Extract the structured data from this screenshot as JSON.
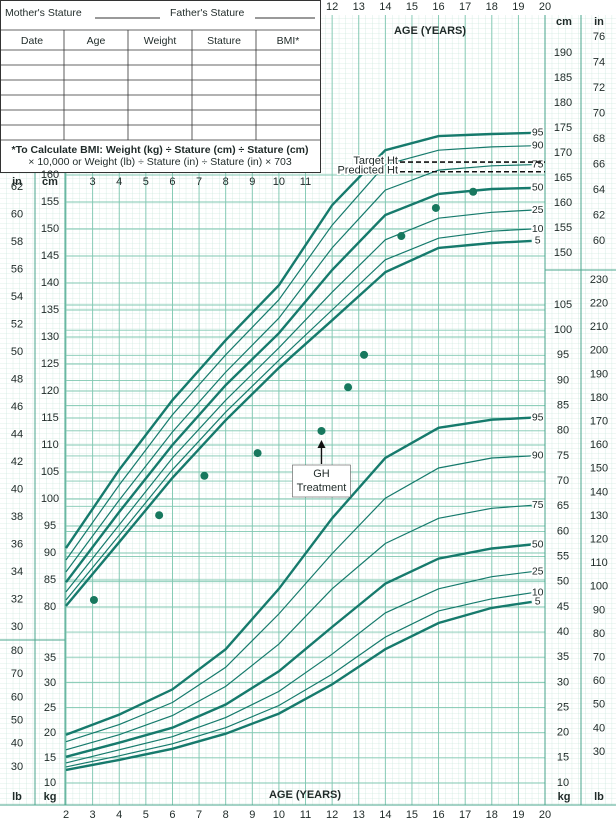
{
  "chart_data": {
    "type": "line",
    "x_label": "AGE (YEARS)",
    "xlim": [
      2,
      20
    ],
    "xticks": [
      2,
      3,
      4,
      5,
      6,
      7,
      8,
      9,
      10,
      11,
      12,
      13,
      14,
      15,
      16,
      17,
      18,
      19,
      20
    ],
    "grid": true,
    "axes": {
      "stature_in_left": {
        "unit": "in",
        "lim": [
          30,
          62
        ],
        "ticks": [
          30,
          32,
          34,
          36,
          38,
          40,
          42,
          44,
          46,
          48,
          50,
          52,
          54,
          56,
          58,
          60,
          62
        ]
      },
      "stature_cm_left": {
        "unit": "cm",
        "lim": [
          80,
          160
        ],
        "ticks": [
          80,
          85,
          90,
          95,
          100,
          105,
          110,
          115,
          120,
          125,
          130,
          135,
          140,
          145,
          150,
          155,
          160
        ]
      },
      "stature_cm_right": {
        "unit": "cm",
        "lim": [
          150,
          190
        ],
        "ticks": [
          150,
          155,
          160,
          165,
          170,
          175,
          180,
          185,
          190
        ]
      },
      "stature_in_right": {
        "unit": "in",
        "lim": [
          60,
          76
        ],
        "ticks": [
          60,
          62,
          64,
          66,
          68,
          70,
          72,
          74,
          76
        ]
      },
      "weight_lb_left": {
        "unit": "lb",
        "lim": [
          30,
          80
        ],
        "ticks": [
          30,
          40,
          50,
          60,
          70,
          80
        ]
      },
      "weight_kg_left": {
        "unit": "kg",
        "lim": [
          10,
          35
        ],
        "ticks": [
          10,
          15,
          20,
          25,
          30,
          35
        ]
      },
      "weight_kg_right": {
        "unit": "kg",
        "lim": [
          10,
          105
        ],
        "ticks": [
          10,
          15,
          20,
          25,
          30,
          35,
          40,
          45,
          50,
          55,
          60,
          65,
          70,
          75,
          80,
          85,
          90,
          95,
          100,
          105
        ]
      },
      "weight_lb_right": {
        "unit": "lb",
        "lim": [
          30,
          230
        ],
        "ticks": [
          30,
          40,
          50,
          60,
          70,
          80,
          90,
          100,
          110,
          120,
          130,
          140,
          150,
          160,
          170,
          180,
          190,
          200,
          210,
          220,
          230
        ]
      }
    },
    "percentile_ages": [
      2,
      4,
      6,
      8,
      10,
      12,
      14,
      16,
      18,
      19.5
    ],
    "stature_series": [
      {
        "name": "95",
        "color": "#167a6c",
        "emphasis": true,
        "axis": "stature_cm_left",
        "values": [
          90.9,
          105.4,
          118.3,
          129.4,
          139.6,
          154.4,
          164.6,
          167.2,
          167.6,
          167.8
        ]
      },
      {
        "name": "90",
        "color": "#167a6c",
        "emphasis": false,
        "axis": "stature_cm_left",
        "values": [
          88.7,
          102.6,
          115.6,
          126.7,
          136.9,
          150.7,
          161.9,
          164.6,
          165.2,
          165.4
        ]
      },
      {
        "name": "75",
        "color": "#167a6c",
        "emphasis": false,
        "axis": "stature_cm_left",
        "values": [
          86.5,
          99.8,
          112.4,
          123.5,
          133.5,
          146.5,
          157.2,
          160.9,
          161.7,
          161.9
        ]
      },
      {
        "name": "50",
        "color": "#167a6c",
        "emphasis": true,
        "axis": "stature_cm_left",
        "values": [
          84.6,
          97.6,
          110,
          121.1,
          130.7,
          142.4,
          152.6,
          156.5,
          157.4,
          157.6
        ]
      },
      {
        "name": "25",
        "color": "#167a6c",
        "emphasis": false,
        "axis": "stature_cm_left",
        "values": [
          82.8,
          95.2,
          107.6,
          118.3,
          128,
          138.3,
          148,
          152,
          153.1,
          153.5
        ]
      },
      {
        "name": "10",
        "color": "#167a6c",
        "emphasis": false,
        "axis": "stature_cm_left",
        "values": [
          81.3,
          93.3,
          105.4,
          116.1,
          125.7,
          135,
          144.3,
          148.3,
          149.6,
          150
        ]
      },
      {
        "name": "5",
        "color": "#167a6c",
        "emphasis": true,
        "axis": "stature_cm_left",
        "values": [
          80.2,
          92,
          103.9,
          114.6,
          124.3,
          133.1,
          142,
          146.5,
          147.4,
          147.8
        ]
      }
    ],
    "weight_series": [
      {
        "name": "95",
        "color": "#167a6c",
        "emphasis": true,
        "axis": "weight_kg_right",
        "values": [
          19.6,
          23.6,
          28.6,
          36.6,
          48.6,
          62.6,
          74.6,
          80.6,
          82.2,
          82.6
        ]
      },
      {
        "name": "90",
        "color": "#167a6c",
        "emphasis": false,
        "axis": "weight_kg_right",
        "values": [
          18.2,
          21.6,
          26,
          33,
          43.6,
          55.6,
          66.6,
          72.6,
          74.6,
          75
        ]
      },
      {
        "name": "75",
        "color": "#167a6c",
        "emphasis": false,
        "axis": "weight_kg_right",
        "values": [
          16.6,
          19.6,
          23.4,
          29.2,
          37.6,
          48.6,
          57.6,
          62.6,
          64.6,
          65.2
        ]
      },
      {
        "name": "50",
        "color": "#167a6c",
        "emphasis": true,
        "axis": "weight_kg_right",
        "values": [
          15.2,
          18,
          21,
          25.6,
          32.2,
          41,
          49.6,
          54.6,
          56.6,
          57.4
        ]
      },
      {
        "name": "25",
        "color": "#167a6c",
        "emphasis": false,
        "axis": "weight_kg_right",
        "values": [
          14,
          16.6,
          19.2,
          23,
          28.2,
          35.6,
          43.8,
          48.6,
          51,
          52
        ]
      },
      {
        "name": "10",
        "color": "#167a6c",
        "emphasis": false,
        "axis": "weight_kg_right",
        "values": [
          13.2,
          15.4,
          17.8,
          21,
          25.4,
          31.6,
          39,
          44.2,
          46.6,
          47.8
        ]
      },
      {
        "name": "5",
        "color": "#167a6c",
        "emphasis": true,
        "axis": "weight_kg_right",
        "values": [
          12.6,
          14.6,
          16.8,
          19.8,
          23.8,
          29.6,
          36.6,
          41.8,
          44.8,
          46
        ]
      }
    ],
    "patient": {
      "color": "#17785e",
      "axis": "stature_cm_left",
      "x": [
        3.05,
        5.5,
        7.2,
        9.2,
        11.6,
        12.6,
        13.2,
        14.6,
        15.9,
        17.3
      ],
      "values": [
        81.3,
        97,
        104.3,
        108.5,
        112.6,
        120.7,
        126.7,
        148.7,
        153.9,
        156.9
      ]
    },
    "reference_lines": [
      {
        "label": "Target Ht",
        "value": 162.4,
        "axis": "stature_cm_left"
      },
      {
        "label": "Predicted Ht",
        "value": 160.6,
        "axis": "stature_cm_left"
      }
    ],
    "annotation": {
      "lines": [
        "GH",
        "Treatment"
      ],
      "x": 11.6
    }
  },
  "form": {
    "mother": "Mother's Stature",
    "father": "Father's Stature",
    "columns": [
      "Date",
      "Age",
      "Weight",
      "Stature",
      "BMI*"
    ],
    "note": [
      "*To Calculate BMI: Weight (kg) ÷ Stature (cm) ÷ Stature (cm)",
      "× 10,000 or Weight (lb) ÷ Stature (in) ÷ Stature (in) × 703"
    ]
  }
}
